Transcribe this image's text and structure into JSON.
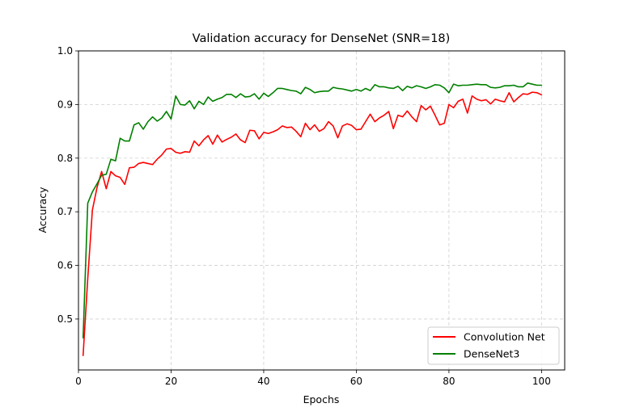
{
  "chart_data": {
    "type": "line",
    "title": "Validation accuracy for DenseNet (SNR=18)",
    "xlabel": "Epochs",
    "ylabel": "Accuracy",
    "xlim": [
      0,
      105
    ],
    "ylim": [
      0.405,
      1.0
    ],
    "xticks": [
      0,
      20,
      40,
      60,
      80,
      100
    ],
    "yticks": [
      0.5,
      0.6,
      0.7,
      0.8,
      0.9,
      1.0
    ],
    "xtick_labels": [
      "0",
      "20",
      "40",
      "60",
      "80",
      "100"
    ],
    "ytick_labels": [
      "0.5",
      "0.6",
      "0.7",
      "0.8",
      "0.9",
      "1.0"
    ],
    "grid": true,
    "legend_position": "bottom-right",
    "x": [
      1,
      2,
      3,
      4,
      5,
      6,
      7,
      8,
      9,
      10,
      11,
      12,
      13,
      14,
      15,
      16,
      17,
      18,
      19,
      20,
      21,
      22,
      23,
      24,
      25,
      26,
      27,
      28,
      29,
      30,
      31,
      32,
      33,
      34,
      35,
      36,
      37,
      38,
      39,
      40,
      41,
      42,
      43,
      44,
      45,
      46,
      47,
      48,
      49,
      50,
      51,
      52,
      53,
      54,
      55,
      56,
      57,
      58,
      59,
      60,
      61,
      62,
      63,
      64,
      65,
      66,
      67,
      68,
      69,
      70,
      71,
      72,
      73,
      74,
      75,
      76,
      77,
      78,
      79,
      80,
      81,
      82,
      83,
      84,
      85,
      86,
      87,
      88,
      89,
      90,
      91,
      92,
      93,
      94,
      95,
      96,
      97,
      98,
      99,
      100
    ],
    "series": [
      {
        "name": "Convolution Net",
        "color": "#ff0000",
        "values": [
          0.432,
          0.575,
          0.703,
          0.745,
          0.775,
          0.743,
          0.775,
          0.767,
          0.764,
          0.751,
          0.782,
          0.783,
          0.79,
          0.792,
          0.79,
          0.788,
          0.798,
          0.806,
          0.817,
          0.818,
          0.811,
          0.809,
          0.812,
          0.811,
          0.832,
          0.823,
          0.834,
          0.842,
          0.826,
          0.843,
          0.83,
          0.835,
          0.839,
          0.845,
          0.834,
          0.829,
          0.852,
          0.851,
          0.836,
          0.848,
          0.846,
          0.849,
          0.853,
          0.86,
          0.857,
          0.858,
          0.85,
          0.84,
          0.865,
          0.853,
          0.862,
          0.85,
          0.855,
          0.868,
          0.86,
          0.838,
          0.86,
          0.864,
          0.861,
          0.853,
          0.854,
          0.868,
          0.882,
          0.868,
          0.875,
          0.88,
          0.887,
          0.855,
          0.88,
          0.877,
          0.888,
          0.877,
          0.868,
          0.898,
          0.89,
          0.897,
          0.88,
          0.862,
          0.865,
          0.9,
          0.894,
          0.906,
          0.91,
          0.884,
          0.916,
          0.91,
          0.907,
          0.909,
          0.901,
          0.91,
          0.907,
          0.905,
          0.922,
          0.905,
          0.913,
          0.92,
          0.919,
          0.923,
          0.922,
          0.918
        ]
      },
      {
        "name": "DenseNet3",
        "color": "#008000",
        "values": [
          0.465,
          0.716,
          0.737,
          0.752,
          0.768,
          0.77,
          0.798,
          0.795,
          0.837,
          0.832,
          0.832,
          0.862,
          0.866,
          0.854,
          0.868,
          0.877,
          0.869,
          0.875,
          0.887,
          0.873,
          0.916,
          0.9,
          0.899,
          0.907,
          0.892,
          0.906,
          0.9,
          0.914,
          0.906,
          0.91,
          0.913,
          0.919,
          0.919,
          0.913,
          0.92,
          0.914,
          0.915,
          0.92,
          0.91,
          0.921,
          0.915,
          0.922,
          0.93,
          0.93,
          0.928,
          0.926,
          0.925,
          0.92,
          0.932,
          0.928,
          0.922,
          0.924,
          0.925,
          0.925,
          0.932,
          0.93,
          0.929,
          0.927,
          0.925,
          0.928,
          0.925,
          0.93,
          0.926,
          0.937,
          0.933,
          0.933,
          0.931,
          0.93,
          0.934,
          0.926,
          0.934,
          0.931,
          0.935,
          0.933,
          0.93,
          0.933,
          0.937,
          0.936,
          0.931,
          0.922,
          0.938,
          0.935,
          0.936,
          0.936,
          0.937,
          0.938,
          0.937,
          0.937,
          0.932,
          0.931,
          0.932,
          0.935,
          0.935,
          0.936,
          0.933,
          0.933,
          0.94,
          0.938,
          0.936,
          0.936
        ]
      }
    ]
  }
}
